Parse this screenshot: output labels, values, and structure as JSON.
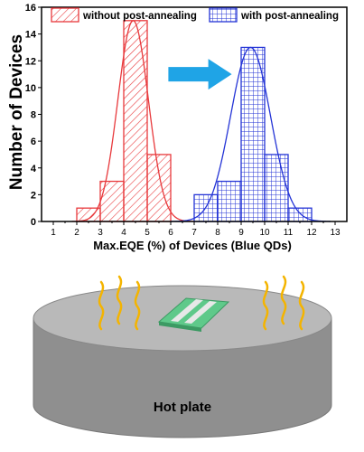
{
  "chart_data": {
    "type": "bar",
    "xlabel": "Max.EQE (%) of Devices (Blue QDs)",
    "ylabel": "Number of Devices",
    "xlim": [
      0.5,
      13.5
    ],
    "ylim": [
      0,
      16
    ],
    "x_ticks": [
      "1",
      "2",
      "3",
      "4",
      "5",
      "6",
      "7",
      "8",
      "9",
      "10",
      "11",
      "12",
      "13"
    ],
    "y_ticks": [
      "0",
      "2",
      "4",
      "6",
      "8",
      "10",
      "12",
      "14",
      "16"
    ],
    "bin_width": 1,
    "series": [
      {
        "name": "without post-annealing",
        "color": "#e8393c",
        "hatch": "diagonal",
        "bins": [
          {
            "center": 2.5,
            "count": 1
          },
          {
            "center": 3.5,
            "count": 3
          },
          {
            "center": 4.5,
            "count": 15
          },
          {
            "center": 5.5,
            "count": 5
          }
        ],
        "fit": {
          "mean": 4.4,
          "sigma": 0.65,
          "peak": 15
        }
      },
      {
        "name": "with post-annealing",
        "color": "#2434d6",
        "hatch": "grid",
        "bins": [
          {
            "center": 7.5,
            "count": 2
          },
          {
            "center": 8.5,
            "count": 3
          },
          {
            "center": 9.5,
            "count": 13
          },
          {
            "center": 10.5,
            "count": 5
          },
          {
            "center": 11.5,
            "count": 1
          }
        ],
        "fit": {
          "mean": 9.4,
          "sigma": 0.85,
          "peak": 13
        }
      }
    ],
    "grid": false,
    "legend_position": "top"
  },
  "illustration": {
    "label": "Hot plate",
    "arrow_color": "#1fa4e6",
    "plate_top_color": "#b9b9b9",
    "plate_side_color": "#8f8f8f",
    "device_color": "#5fc98a",
    "heat_wave_color": "#f4b400"
  }
}
